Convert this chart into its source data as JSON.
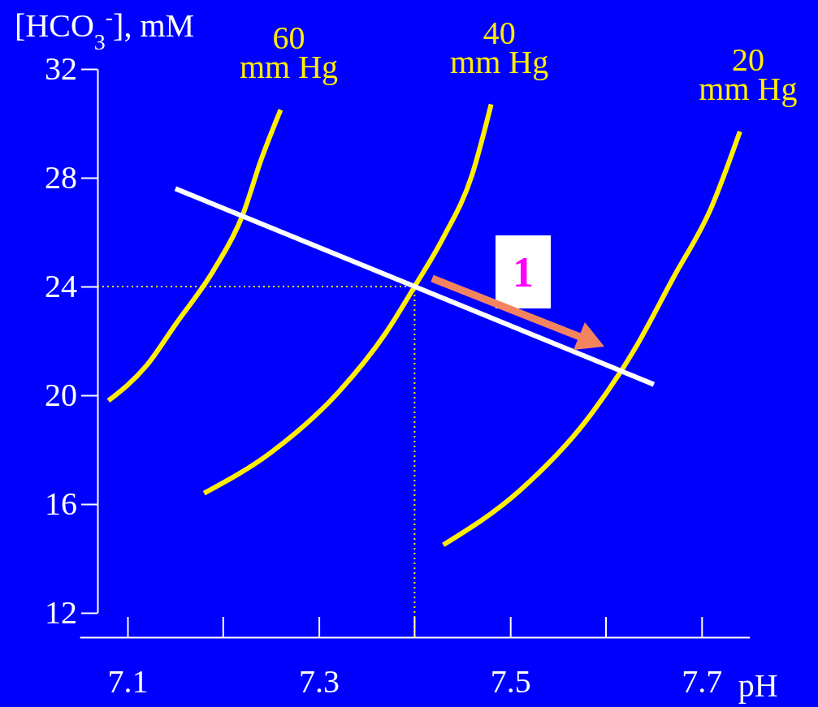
{
  "chart_data": {
    "type": "line",
    "xlabel": "pH",
    "ylabel": "[HCO$_{3}$$^{-}$], mM",
    "xlim": [
      7.05,
      7.75
    ],
    "ylim": [
      12,
      32
    ],
    "xticks": [
      7.1,
      7.3,
      7.5,
      7.7
    ],
    "yticks": [
      12,
      16,
      20,
      24,
      28,
      32
    ],
    "series": [
      {
        "name": "60 mm Hg",
        "color": "#ffee00",
        "x": [
          7.08,
          7.12,
          7.15,
          7.19,
          7.22,
          7.24,
          7.26
        ],
        "values": [
          19.8,
          21.1,
          22.6,
          24.6,
          26.6,
          28.7,
          30.5
        ]
      },
      {
        "name": "40 mm Hg",
        "color": "#ffee00",
        "x": [
          7.18,
          7.25,
          7.32,
          7.37,
          7.4,
          7.43,
          7.46,
          7.48
        ],
        "values": [
          16.4,
          17.9,
          20.1,
          22.3,
          24.0,
          25.8,
          28.1,
          30.7
        ]
      },
      {
        "name": "20 mm Hg",
        "color": "#ffee00",
        "x": [
          7.43,
          7.51,
          7.58,
          7.63,
          7.67,
          7.71,
          7.74
        ],
        "values": [
          14.5,
          16.5,
          19.1,
          21.7,
          24.3,
          26.9,
          29.7
        ]
      },
      {
        "color": "#ffffff",
        "x": [
          7.15,
          7.65
        ],
        "values": [
          27.6,
          20.4
        ]
      }
    ],
    "ref_lines": [
      {
        "axis": "y",
        "value": 24,
        "color": "#ffee00",
        "line_style": "dotted"
      },
      {
        "axis": "x",
        "value": 7.4,
        "color": "#ffee00",
        "line_style": "dotted"
      }
    ],
    "annotations": [
      "1"
    ],
    "grid": false
  }
}
